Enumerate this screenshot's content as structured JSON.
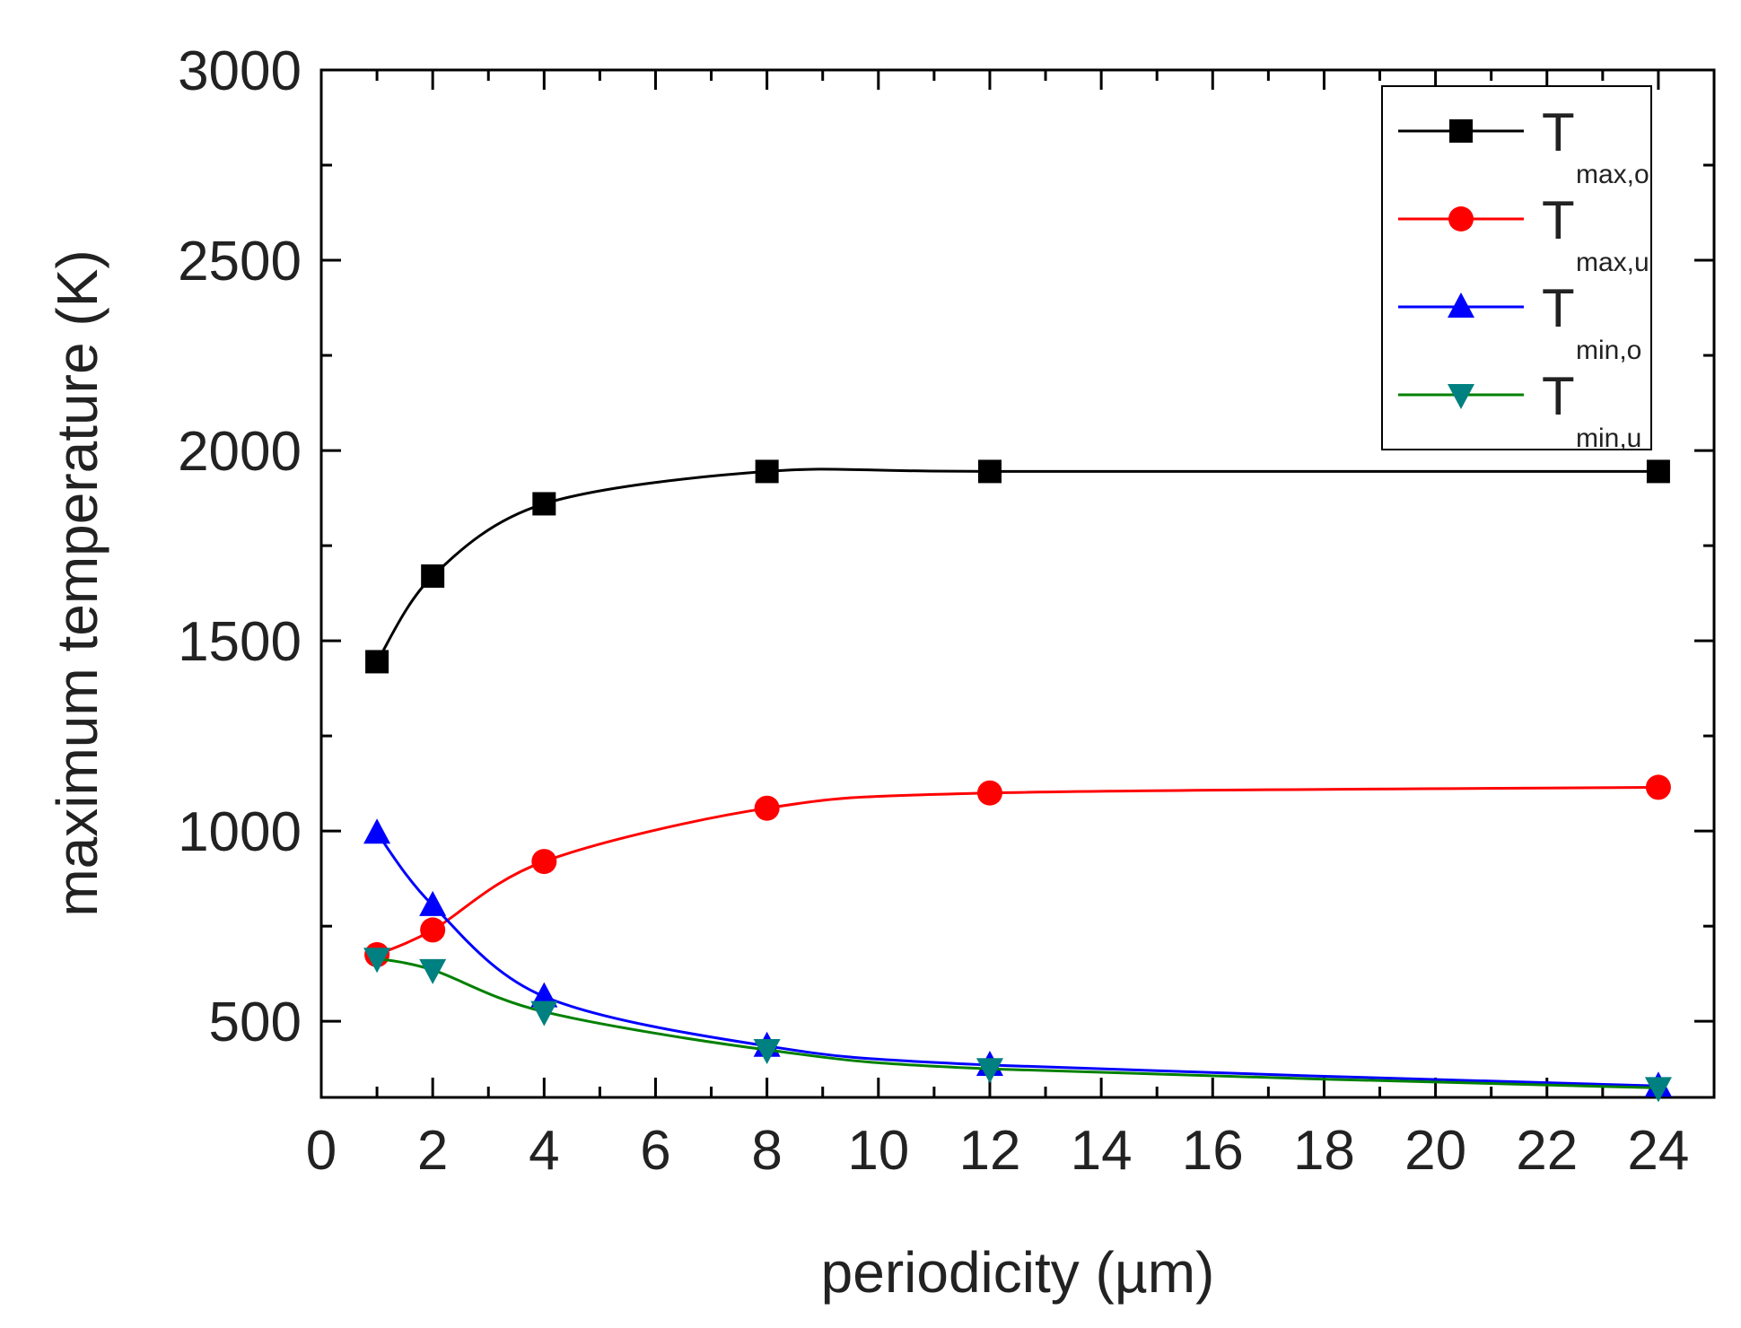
{
  "chart_data": {
    "type": "line",
    "title": "",
    "xlabel": "periodicity (µm)",
    "ylabel": "maximum temperature (K)",
    "xlim": [
      0,
      25
    ],
    "ylim": [
      300,
      3000
    ],
    "xticks": [
      0,
      2,
      4,
      6,
      8,
      10,
      12,
      14,
      16,
      18,
      20,
      22,
      24
    ],
    "yticks": [
      500,
      1000,
      1500,
      2000,
      2500,
      3000
    ],
    "x": [
      1,
      2,
      4,
      8,
      12,
      24
    ],
    "grid": false,
    "legend_position": "top-right",
    "series": [
      {
        "name": "T_max,o",
        "label_main": "T",
        "label_sub": "max,o",
        "color": "#000000",
        "marker": "square",
        "values": [
          1445,
          1670,
          1860,
          1945,
          1945,
          1945
        ]
      },
      {
        "name": "T_max,u",
        "label_main": "T",
        "label_sub": "max,u",
        "color": "#ff0000",
        "marker": "circle",
        "values": [
          675,
          740,
          920,
          1060,
          1100,
          1115
        ]
      },
      {
        "name": "T_min,o",
        "label_main": "T",
        "label_sub": "min,o",
        "color": "#0000ff",
        "marker": "triangle-up",
        "values": [
          995,
          805,
          565,
          435,
          385,
          330
        ]
      },
      {
        "name": "T_min,u",
        "label_main": "T",
        "label_sub": "min,u",
        "color": "#008000",
        "marker_color": "#008080",
        "marker": "triangle-down",
        "values": [
          665,
          635,
          525,
          425,
          375,
          325
        ]
      }
    ]
  }
}
